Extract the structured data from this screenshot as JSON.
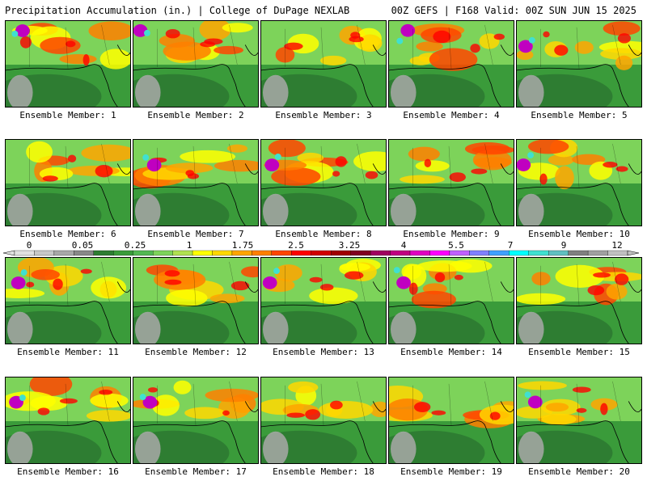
{
  "header": {
    "title": "Precipitation Accumulation (in.) | College of DuPage NEXLAB",
    "run_info": "00Z GEFS | F168 Valid: 00Z SUN JUN 15 2025"
  },
  "colorbar": {
    "tick_labels": [
      "0",
      "0.05",
      "0.25",
      "1",
      "1.75",
      "2.5",
      "3.25",
      "4",
      "5.5",
      "7",
      "9",
      "12"
    ],
    "colors": [
      "#e0e0e0",
      "#c8c8c8",
      "#a8a8a8",
      "#888888",
      "#2e7d32",
      "#3a9b3a",
      "#52b852",
      "#7dd35a",
      "#b0e050",
      "#ffff00",
      "#ffd700",
      "#ffa500",
      "#ff7f00",
      "#ff4500",
      "#ff0000",
      "#d00000",
      "#a00000",
      "#800020",
      "#a00060",
      "#c00080",
      "#e000c0",
      "#ff00ff",
      "#c060ff",
      "#8080ff",
      "#40a0ff",
      "#00ffff",
      "#40e0d0",
      "#60c0c0",
      "#808080",
      "#a0a0a0",
      "#c0c0c0"
    ]
  },
  "members": [
    {
      "label": "Ensemble Member: 1"
    },
    {
      "label": "Ensemble Member: 2"
    },
    {
      "label": "Ensemble Member: 3"
    },
    {
      "label": "Ensemble Member: 4"
    },
    {
      "label": "Ensemble Member: 5"
    },
    {
      "label": "Ensemble Member: 6"
    },
    {
      "label": "Ensemble Member: 7"
    },
    {
      "label": "Ensemble Member: 8"
    },
    {
      "label": "Ensemble Member: 9"
    },
    {
      "label": "Ensemble Member: 10"
    },
    {
      "label": "Ensemble Member: 11"
    },
    {
      "label": "Ensemble Member: 12"
    },
    {
      "label": "Ensemble Member: 13"
    },
    {
      "label": "Ensemble Member: 14"
    },
    {
      "label": "Ensemble Member: 15"
    },
    {
      "label": "Ensemble Member: 16"
    },
    {
      "label": "Ensemble Member: 17"
    },
    {
      "label": "Ensemble Member: 18"
    },
    {
      "label": "Ensemble Member: 19"
    },
    {
      "label": "Ensemble Member: 20"
    }
  ]
}
